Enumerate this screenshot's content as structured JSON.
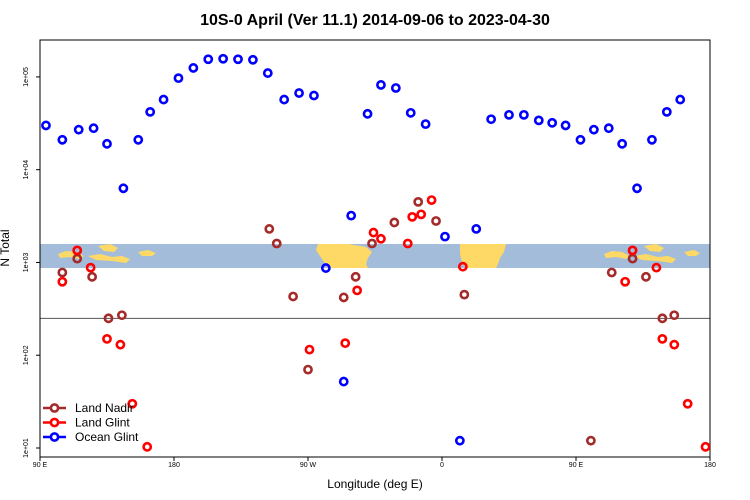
{
  "chart_data": {
    "type": "scatter",
    "title": "10S-0 April (Ver 11.1)   2014-09-06 to 2023-04-30",
    "xlabel": "Longitude (deg E)",
    "ylabel": "N Total",
    "x_scale": "linear",
    "y_scale": "log",
    "xlim": [
      90,
      540
    ],
    "ylim": [
      8,
      250000
    ],
    "x_ticks": [
      {
        "value": 90,
        "label": "90 E"
      },
      {
        "value": 180,
        "label": "180"
      },
      {
        "value": 270,
        "label": "90 W"
      },
      {
        "value": 360,
        "label": "0"
      },
      {
        "value": 450,
        "label": "90 E"
      },
      {
        "value": 540,
        "label": "180"
      }
    ],
    "y_ticks": [
      {
        "value": 10,
        "label": "1e+01"
      },
      {
        "value": 100,
        "label": "1e+02"
      },
      {
        "value": 1000,
        "label": "1e+03"
      },
      {
        "value": 10000,
        "label": "1e+04"
      },
      {
        "value": 100000,
        "label": "1e+05"
      }
    ],
    "reference_line": 250,
    "map_band": {
      "lat_range": "10S-0",
      "land_color": "#ffd966",
      "ocean_color": "#a3bcd9"
    },
    "grid": false,
    "legend_position": "bottom-left",
    "series": [
      {
        "name": "Land Nadir",
        "color": "#a52a2a",
        "points": [
          [
            105,
            780
          ],
          [
            115,
            1100
          ],
          [
            125,
            700
          ],
          [
            136,
            250
          ],
          [
            145,
            270
          ],
          [
            244,
            2300
          ],
          [
            249,
            1600
          ],
          [
            260,
            430
          ],
          [
            270,
            70
          ],
          [
            294,
            420
          ],
          [
            302,
            700
          ],
          [
            313,
            1600
          ],
          [
            328,
            2700
          ],
          [
            344,
            4500
          ],
          [
            356,
            2800
          ],
          [
            375,
            450
          ],
          [
            460,
            12
          ],
          [
            474,
            780
          ],
          [
            488,
            1100
          ],
          [
            497,
            700
          ],
          [
            508,
            250
          ],
          [
            516,
            270
          ]
        ]
      },
      {
        "name": "Land Glint",
        "color": "#ff0000",
        "points": [
          [
            105,
            620
          ],
          [
            115,
            1350
          ],
          [
            124,
            880
          ],
          [
            135,
            150
          ],
          [
            144,
            130
          ],
          [
            152,
            30
          ],
          [
            162,
            10.3
          ],
          [
            271,
            115
          ],
          [
            295,
            135
          ],
          [
            303,
            500
          ],
          [
            314,
            2100
          ],
          [
            319,
            1800
          ],
          [
            337,
            1600
          ],
          [
            340,
            3100
          ],
          [
            346,
            3300
          ],
          [
            353,
            4700
          ],
          [
            374,
            900
          ],
          [
            483,
            620
          ],
          [
            488,
            1350
          ],
          [
            504,
            880
          ],
          [
            508,
            150
          ],
          [
            516,
            130
          ],
          [
            525,
            30
          ],
          [
            537,
            10.3
          ]
        ]
      },
      {
        "name": "Ocean Glint",
        "color": "#0000ff",
        "points": [
          [
            94,
            30000
          ],
          [
            105,
            21000
          ],
          [
            116,
            27000
          ],
          [
            126,
            28000
          ],
          [
            135,
            19000
          ],
          [
            146,
            6300
          ],
          [
            156,
            21000
          ],
          [
            164,
            42000
          ],
          [
            173,
            57000
          ],
          [
            183,
            97000
          ],
          [
            193,
            125000
          ],
          [
            203,
            155000
          ],
          [
            213,
            157000
          ],
          [
            223,
            155000
          ],
          [
            233,
            153000
          ],
          [
            243,
            110000
          ],
          [
            254,
            57000
          ],
          [
            264,
            67000
          ],
          [
            274,
            63000
          ],
          [
            282,
            870
          ],
          [
            294,
            52
          ],
          [
            299,
            3200
          ],
          [
            310,
            40000
          ],
          [
            319,
            82000
          ],
          [
            329,
            76000
          ],
          [
            339,
            41000
          ],
          [
            349,
            31000
          ],
          [
            362,
            1900
          ],
          [
            372,
            12
          ],
          [
            383,
            2300
          ],
          [
            393,
            35000
          ],
          [
            405,
            39000
          ],
          [
            415,
            39000
          ],
          [
            425,
            34000
          ],
          [
            434,
            32000
          ],
          [
            443,
            30000
          ],
          [
            453,
            21000
          ],
          [
            462,
            27000
          ],
          [
            472,
            28000
          ],
          [
            481,
            19000
          ],
          [
            491,
            6300
          ],
          [
            501,
            21000
          ],
          [
            511,
            42000
          ],
          [
            520,
            57000
          ]
        ]
      }
    ]
  }
}
